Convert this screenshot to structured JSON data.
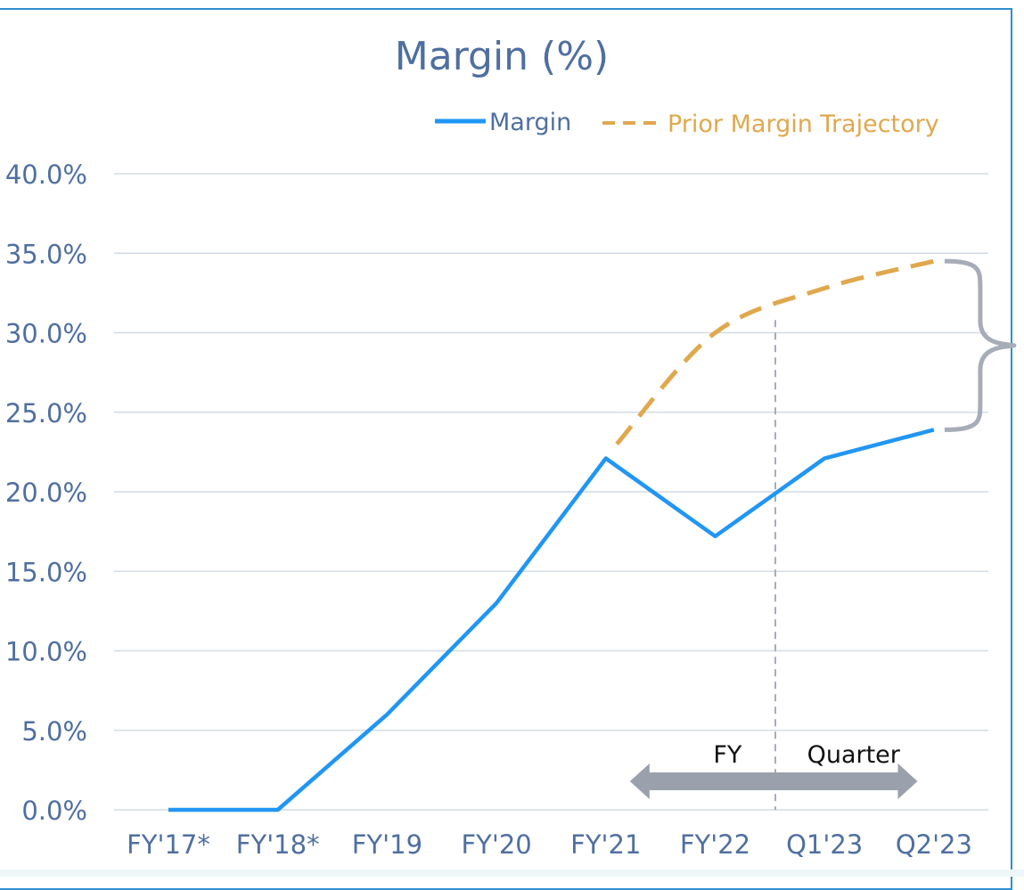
{
  "chart_data": {
    "type": "line",
    "title": "Margin (%)",
    "xlabel": "",
    "ylabel": "",
    "categories": [
      "FY'17*",
      "FY'18*",
      "FY'19",
      "FY'20",
      "FY'21",
      "FY'22",
      "Q1'23",
      "Q2'23"
    ],
    "ylim": [
      0,
      40
    ],
    "y_ticks": [
      "0.0%",
      "5.0%",
      "10.0%",
      "15.0%",
      "20.0%",
      "25.0%",
      "30.0%",
      "35.0%",
      "40.0%"
    ],
    "grid": true,
    "legend_position": "top-right",
    "series": [
      {
        "name": "Margin",
        "style": "solid",
        "color": "#2196f3",
        "values": [
          0,
          0,
          6.0,
          13.0,
          22.1,
          17.2,
          22.1,
          23.9
        ]
      },
      {
        "name": "Prior Margin Trajectory",
        "style": "dashed",
        "color": "#e0a84e",
        "x": [
          4.1,
          5.0,
          6.0,
          7.0
        ],
        "values": [
          23.0,
          30.0,
          32.8,
          34.5
        ]
      }
    ],
    "annotations": {
      "fy_label": "FY",
      "quarter_label": "Quarter",
      "divider_color": "#a6acb8",
      "arrow_color": "#9aa1ad",
      "gap_bracket_color": "#a6acb8"
    }
  }
}
